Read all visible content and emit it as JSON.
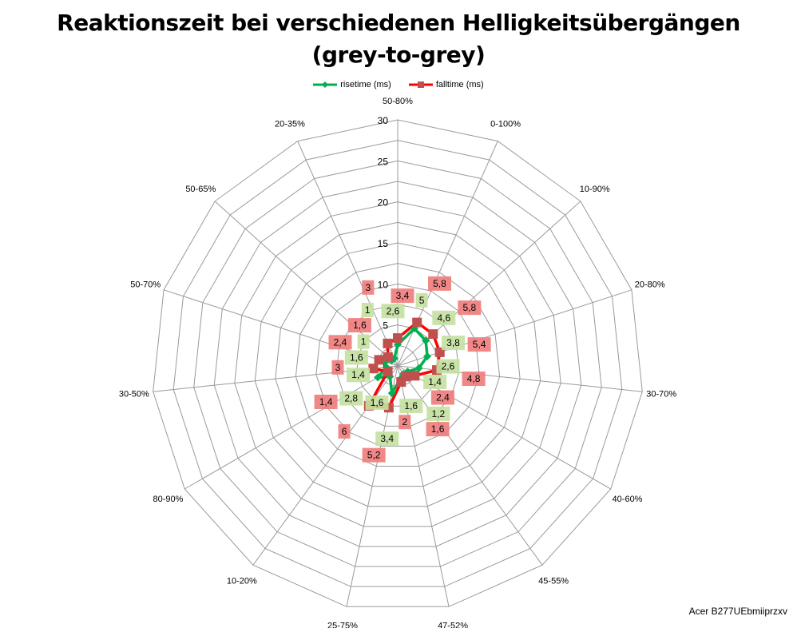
{
  "title_line1": "Reaktionszeit bei verschiedenen Helligkeitsübergängen",
  "title_line2": "(grey-to-grey)",
  "watermark": "Acer B277UEbmiiprzxv",
  "chart_data": {
    "type": "radar",
    "title": "Reaktionszeit bei verschiedenen Helligkeitsübergängen (grey-to-grey)",
    "categories": [
      "50-80%",
      "0-100%",
      "10-90%",
      "20-80%",
      "30-70%",
      "40-60%",
      "45-55%",
      "47-52%",
      "25-75%",
      "10-20%",
      "80-90%",
      "30-50%",
      "50-70%",
      "50-65%",
      "20-35%"
    ],
    "rmin": 0,
    "rmax": 30,
    "ticks": [
      0,
      5,
      10,
      15,
      20,
      25,
      30
    ],
    "minor_step": 2.5,
    "legend_position": "top",
    "series": [
      {
        "name": "risetime (ms)",
        "color": "#00b050",
        "marker": "diamond",
        "label_bg": "#c3e0a0",
        "values": [
          2.6,
          5,
          4.6,
          3.8,
          2.6,
          1.4,
          1.2,
          1.6,
          3.4,
          1.6,
          2.8,
          1.4,
          1.6,
          1,
          1
        ],
        "labels": [
          "2,6",
          "5",
          "4,6",
          "3,8",
          "2,6",
          "1,4",
          "1,2",
          "1,6",
          "3,4",
          "1,6",
          "2,8",
          "1,4",
          "1,6",
          "1",
          "1"
        ]
      },
      {
        "name": "falltime (ms)",
        "color": "#ff0000",
        "marker": "square",
        "label_bg": "#f07b7b",
        "values": [
          3.4,
          5.8,
          5.8,
          5.4,
          4.8,
          2.4,
          1.6,
          2,
          5.2,
          6,
          1.4,
          3,
          2.4,
          1.6,
          3
        ],
        "labels": [
          "3,4",
          "5,8",
          "5,8",
          "5,4",
          "4,8",
          "2,4",
          "1,6",
          "2",
          "5,2",
          "6",
          "1,4",
          "3",
          "2,4",
          "1,6",
          "3"
        ]
      }
    ]
  }
}
